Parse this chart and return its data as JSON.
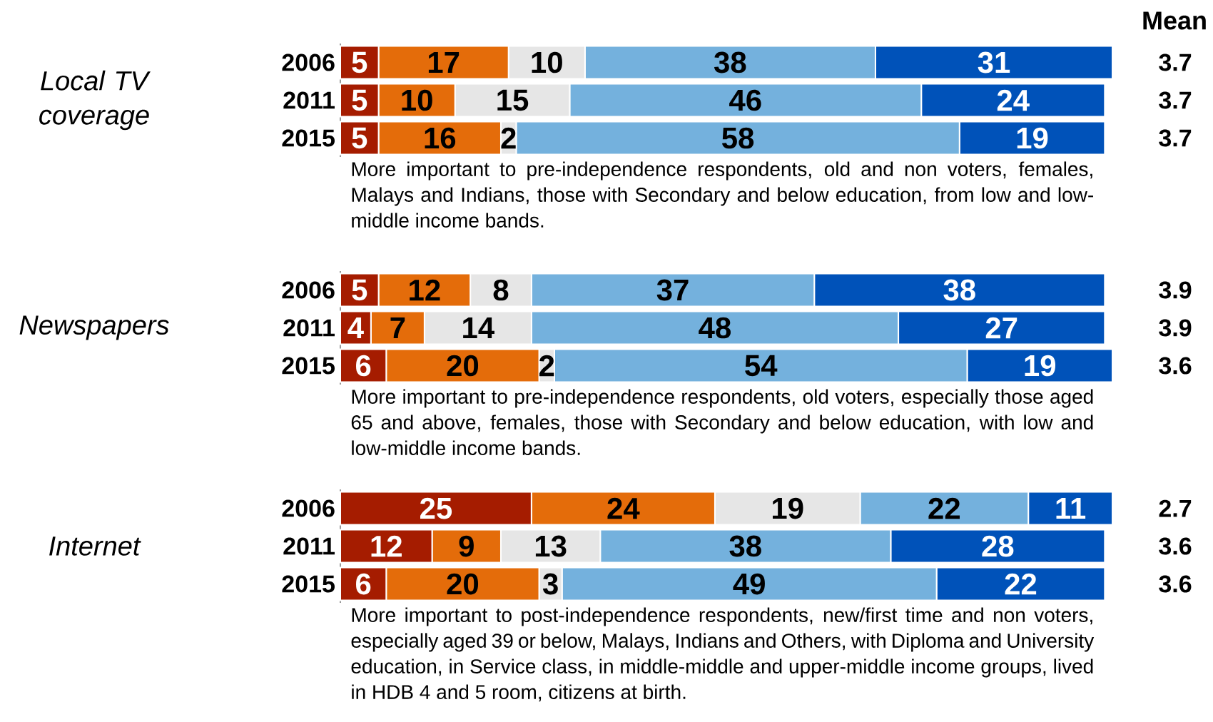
{
  "chart_data": [
    {
      "type": "bar",
      "orientation": "horizontal",
      "stacked": true,
      "data_labels": true,
      "ylabel": "Local TV coverage",
      "y2label": "Mean",
      "categories": [
        "2006",
        "2011",
        "2015"
      ],
      "series": [
        {
          "color": "#a51c00",
          "values": [
            5,
            5,
            5
          ]
        },
        {
          "color": "#e46c0a",
          "values": [
            17,
            10,
            16
          ]
        },
        {
          "color": "#e6e6e6",
          "values": [
            10,
            15,
            2
          ]
        },
        {
          "color": "#74b1dd",
          "values": [
            38,
            46,
            58
          ]
        },
        {
          "color": "#0052b9",
          "values": [
            31,
            24,
            19
          ]
        }
      ],
      "annotations": [
        "More important to pre-independence respondents, old and non voters, females, Malays and Indians, those with Secondary and below education, from low and low-middle income bands.",
        "3.7",
        "3.7",
        "3.7"
      ]
    },
    {
      "type": "bar",
      "orientation": "horizontal",
      "stacked": true,
      "data_labels": true,
      "ylabel": "Newspapers",
      "categories": [
        "2006",
        "2011",
        "2015"
      ],
      "series": [
        {
          "color": "#a51c00",
          "values": [
            5,
            4,
            6
          ]
        },
        {
          "color": "#e46c0a",
          "values": [
            12,
            7,
            20
          ]
        },
        {
          "color": "#e6e6e6",
          "values": [
            8,
            14,
            2
          ]
        },
        {
          "color": "#74b1dd",
          "values": [
            37,
            48,
            54
          ]
        },
        {
          "color": "#0052b9",
          "values": [
            38,
            27,
            19
          ]
        }
      ],
      "annotations": [
        "More important to pre-independence respondents, old voters, especially those aged 65 and above, females, those with Secondary and below education, with low and low-middle income bands.",
        "3.9",
        "3.9",
        "3.6"
      ]
    },
    {
      "type": "bar",
      "orientation": "horizontal",
      "stacked": true,
      "data_labels": true,
      "ylabel": "Internet",
      "categories": [
        "2006",
        "2011",
        "2015"
      ],
      "series": [
        {
          "color": "#a51c00",
          "values": [
            25,
            12,
            6
          ]
        },
        {
          "color": "#e46c0a",
          "values": [
            24,
            9,
            20
          ]
        },
        {
          "color": "#e6e6e6",
          "values": [
            19,
            13,
            3
          ]
        },
        {
          "color": "#74b1dd",
          "values": [
            22,
            38,
            49
          ]
        },
        {
          "color": "#0052b9",
          "values": [
            11,
            28,
            22
          ]
        }
      ],
      "annotations": [
        "More important to post-independence respondents, new/first time and non voters, especially aged 39 or below, Malays, Indians and Others, with Diploma and University education, in Service class, in middle-middle and upper-middle income groups, lived in HDB 4 and 5 room, citizens at birth.",
        "2.7",
        "3.6",
        "3.6"
      ]
    }
  ]
}
